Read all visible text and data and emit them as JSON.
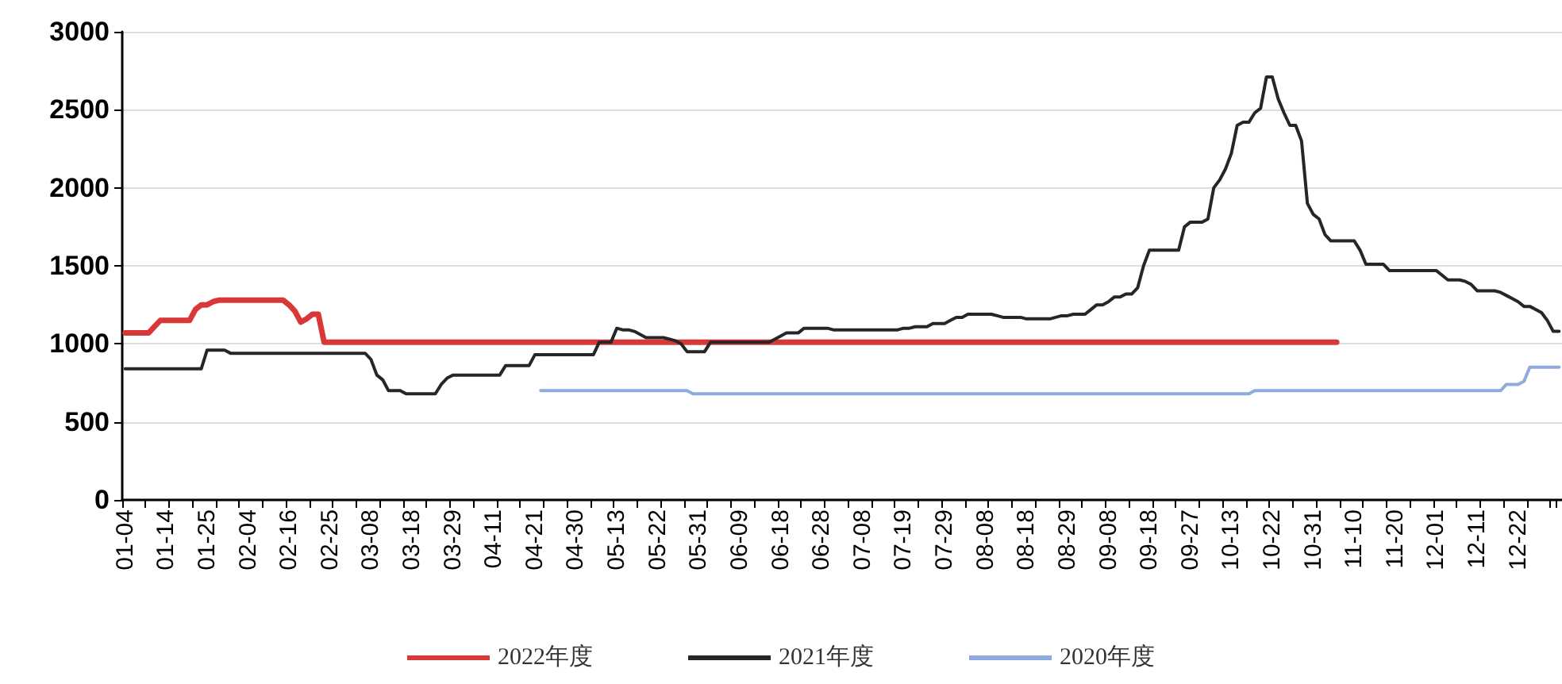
{
  "chart_data": {
    "type": "line",
    "categories": [
      "01-04",
      null,
      null,
      null,
      null,
      null,
      null,
      "01-14",
      null,
      null,
      null,
      null,
      null,
      null,
      "01-25",
      null,
      null,
      null,
      null,
      null,
      null,
      "02-04",
      null,
      null,
      null,
      null,
      null,
      null,
      "02-16",
      null,
      null,
      null,
      null,
      null,
      null,
      "02-25",
      null,
      null,
      null,
      null,
      null,
      null,
      "03-08",
      null,
      null,
      null,
      null,
      null,
      null,
      "03-18",
      null,
      null,
      null,
      null,
      null,
      null,
      "03-29",
      null,
      null,
      null,
      null,
      null,
      null,
      "04-11",
      null,
      null,
      null,
      null,
      null,
      null,
      "04-21",
      null,
      null,
      null,
      null,
      null,
      null,
      "04-30",
      null,
      null,
      null,
      null,
      null,
      null,
      "05-13",
      null,
      null,
      null,
      null,
      null,
      null,
      "05-22",
      null,
      null,
      null,
      null,
      null,
      null,
      "05-31",
      null,
      null,
      null,
      null,
      null,
      null,
      "06-09",
      null,
      null,
      null,
      null,
      null,
      null,
      "06-18",
      null,
      null,
      null,
      null,
      null,
      null,
      "06-28",
      null,
      null,
      null,
      null,
      null,
      null,
      "07-08",
      null,
      null,
      null,
      null,
      null,
      null,
      "07-19",
      null,
      null,
      null,
      null,
      null,
      null,
      "07-29",
      null,
      null,
      null,
      null,
      null,
      null,
      "08-08",
      null,
      null,
      null,
      null,
      null,
      null,
      "08-18",
      null,
      null,
      null,
      null,
      null,
      null,
      "08-29",
      null,
      null,
      null,
      null,
      null,
      null,
      "09-08",
      null,
      null,
      null,
      null,
      null,
      null,
      "09-18",
      null,
      null,
      null,
      null,
      null,
      null,
      "09-27",
      null,
      null,
      null,
      null,
      null,
      null,
      "10-13",
      null,
      null,
      null,
      null,
      null,
      null,
      "10-22",
      null,
      null,
      null,
      null,
      null,
      null,
      "10-31",
      null,
      null,
      null,
      null,
      null,
      null,
      "11-10",
      null,
      null,
      null,
      null,
      null,
      null,
      "11-20",
      null,
      null,
      null,
      null,
      null,
      null,
      "12-01",
      null,
      null,
      null,
      null,
      null,
      null,
      "12-11",
      null,
      null,
      null,
      null,
      null,
      null,
      "12-22",
      null,
      null,
      null,
      null,
      null,
      null,
      null
    ],
    "series": [
      {
        "name": "2022年度",
        "color": "#d93838",
        "values": [
          1070,
          1070,
          1070,
          1070,
          1070,
          1110,
          1150,
          1150,
          1150,
          1150,
          1150,
          1150,
          1220,
          1250,
          1250,
          1270,
          1280,
          1280,
          1280,
          1280,
          1280,
          1280,
          1280,
          1280,
          1280,
          1280,
          1280,
          1280,
          1250,
          1210,
          1140,
          1160,
          1190,
          1190,
          1010,
          1010,
          1010,
          1010,
          1010,
          1010,
          1010,
          1010,
          1010,
          1010,
          1010,
          1010,
          1010,
          1010,
          1010,
          1010,
          1010,
          1010,
          1010,
          1010,
          1010,
          1010,
          1010,
          1010,
          1010,
          1010,
          1010,
          1010,
          1010,
          1010,
          1010,
          1010,
          1010,
          1010,
          1010,
          1010,
          1010,
          1010,
          1010,
          1010,
          1010,
          1010,
          1010,
          1010,
          1010,
          1010,
          1010,
          1010,
          1010,
          1010,
          1010,
          1010,
          1010,
          1010,
          1010,
          1010,
          1010,
          1010,
          1010,
          1010,
          1010,
          1010,
          1010,
          1010,
          1010,
          1010,
          1010,
          1010,
          1010,
          1010,
          1010,
          1010,
          1010,
          1010,
          1010,
          1010,
          1010,
          1010,
          1010,
          1010,
          1010,
          1010,
          1010,
          1010,
          1010,
          1010,
          1010,
          1010,
          1010,
          1010,
          1010,
          1010,
          1010,
          1010,
          1010,
          1010,
          1010,
          1010,
          1010,
          1010,
          1010,
          1010,
          1010,
          1010,
          1010,
          1010,
          1010,
          1010,
          1010,
          1010,
          1010,
          1010,
          1010,
          1010,
          1010,
          1010,
          1010,
          1010,
          1010,
          1010,
          1010,
          1010,
          1010,
          1010,
          1010,
          1010,
          1010,
          1010,
          1010,
          1010,
          1010,
          1010,
          1010,
          1010,
          1010,
          1010,
          1010,
          1010,
          1010,
          1010,
          1010,
          1010,
          1010,
          1010,
          1010,
          1010,
          1010,
          1010,
          1010,
          1010,
          1010,
          1010,
          1010,
          1010,
          1010,
          1010,
          1010,
          1010,
          1010,
          1010,
          1010,
          1010,
          1010,
          1010,
          1010,
          1010,
          1010,
          1010,
          1010,
          1010,
          1010,
          1010,
          1010,
          1010,
          null,
          null,
          null,
          null,
          null,
          null,
          null,
          null,
          null,
          null,
          null,
          null,
          null,
          null,
          null,
          null,
          null,
          null,
          null,
          null,
          null,
          null,
          null,
          null,
          null,
          null,
          null,
          null,
          null,
          null,
          null,
          null,
          null,
          null,
          null,
          null,
          null,
          null
        ]
      },
      {
        "name": "2021年度",
        "color": "#262626",
        "values": [
          840,
          840,
          840,
          840,
          840,
          840,
          840,
          840,
          840,
          840,
          840,
          840,
          840,
          840,
          960,
          960,
          960,
          960,
          940,
          940,
          940,
          940,
          940,
          940,
          940,
          940,
          940,
          940,
          940,
          940,
          940,
          940,
          940,
          940,
          940,
          940,
          940,
          940,
          940,
          940,
          940,
          940,
          900,
          800,
          770,
          700,
          700,
          700,
          680,
          680,
          680,
          680,
          680,
          680,
          740,
          780,
          800,
          800,
          800,
          800,
          800,
          800,
          800,
          800,
          800,
          860,
          860,
          860,
          860,
          860,
          930,
          930,
          930,
          930,
          930,
          930,
          930,
          930,
          930,
          930,
          930,
          1010,
          1010,
          1010,
          1100,
          1090,
          1090,
          1080,
          1060,
          1040,
          1040,
          1040,
          1040,
          1030,
          1020,
          1000,
          950,
          950,
          950,
          950,
          1010,
          1010,
          1010,
          1010,
          1010,
          1010,
          1010,
          1010,
          1010,
          1010,
          1010,
          1030,
          1050,
          1070,
          1070,
          1070,
          1100,
          1100,
          1100,
          1100,
          1100,
          1090,
          1090,
          1090,
          1090,
          1090,
          1090,
          1090,
          1090,
          1090,
          1090,
          1090,
          1090,
          1100,
          1100,
          1110,
          1110,
          1110,
          1130,
          1130,
          1130,
          1150,
          1170,
          1170,
          1190,
          1190,
          1190,
          1190,
          1190,
          1180,
          1170,
          1170,
          1170,
          1170,
          1160,
          1160,
          1160,
          1160,
          1160,
          1170,
          1180,
          1180,
          1190,
          1190,
          1190,
          1220,
          1250,
          1250,
          1270,
          1300,
          1300,
          1320,
          1320,
          1360,
          1500,
          1600,
          1600,
          1600,
          1600,
          1600,
          1600,
          1750,
          1780,
          1780,
          1780,
          1800,
          2000,
          2050,
          2120,
          2220,
          2400,
          2420,
          2420,
          2480,
          2510,
          2710,
          2710,
          2570,
          2480,
          2400,
          2400,
          2300,
          1900,
          1830,
          1800,
          1700,
          1660,
          1660,
          1660,
          1660,
          1660,
          1600,
          1510,
          1510,
          1510,
          1510,
          1470,
          1470,
          1470,
          1470,
          1470,
          1470,
          1470,
          1470,
          1470,
          1440,
          1410,
          1410,
          1410,
          1400,
          1380,
          1340,
          1340,
          1340,
          1340,
          1330,
          1310,
          1290,
          1270,
          1240,
          1240,
          1220,
          1200,
          1150,
          1080,
          1080
        ]
      },
      {
        "name": "2020年度",
        "color": "#8faadc",
        "values": [
          null,
          null,
          null,
          null,
          null,
          null,
          null,
          null,
          null,
          null,
          null,
          null,
          null,
          null,
          null,
          null,
          null,
          null,
          null,
          null,
          null,
          null,
          null,
          null,
          null,
          null,
          null,
          null,
          null,
          null,
          null,
          null,
          null,
          null,
          null,
          null,
          null,
          null,
          null,
          null,
          null,
          null,
          null,
          null,
          null,
          null,
          null,
          null,
          null,
          null,
          null,
          null,
          null,
          null,
          null,
          null,
          null,
          null,
          null,
          null,
          null,
          null,
          null,
          null,
          null,
          null,
          null,
          null,
          null,
          null,
          null,
          700,
          700,
          700,
          700,
          700,
          700,
          700,
          700,
          700,
          700,
          700,
          700,
          700,
          700,
          700,
          700,
          700,
          700,
          700,
          700,
          700,
          700,
          700,
          700,
          700,
          700,
          680,
          680,
          680,
          680,
          680,
          680,
          680,
          680,
          680,
          680,
          680,
          680,
          680,
          680,
          680,
          680,
          680,
          680,
          680,
          680,
          680,
          680,
          680,
          680,
          680,
          680,
          680,
          680,
          680,
          680,
          680,
          680,
          680,
          680,
          680,
          680,
          680,
          680,
          680,
          680,
          680,
          680,
          680,
          680,
          680,
          680,
          680,
          680,
          680,
          680,
          680,
          680,
          680,
          680,
          680,
          680,
          680,
          680,
          680,
          680,
          680,
          680,
          680,
          680,
          680,
          680,
          680,
          680,
          680,
          680,
          680,
          680,
          680,
          680,
          680,
          680,
          680,
          680,
          680,
          680,
          680,
          680,
          680,
          680,
          680,
          680,
          680,
          680,
          680,
          680,
          680,
          680,
          680,
          680,
          680,
          680,
          700,
          700,
          700,
          700,
          700,
          700,
          700,
          700,
          700,
          700,
          700,
          700,
          700,
          700,
          700,
          700,
          700,
          700,
          700,
          700,
          700,
          700,
          700,
          700,
          700,
          700,
          700,
          700,
          700,
          700,
          700,
          700,
          700,
          700,
          700,
          700,
          700,
          700,
          700,
          700,
          700,
          700,
          700,
          740,
          740,
          740,
          760,
          850,
          850,
          850,
          850,
          850,
          850
        ]
      }
    ],
    "ylim": [
      0,
      3000
    ],
    "yticks": [
      0,
      500,
      1000,
      1500,
      2000,
      2500,
      3000
    ],
    "grid": "y",
    "legend": "bottom",
    "marker": "none",
    "line_style": "solid"
  }
}
